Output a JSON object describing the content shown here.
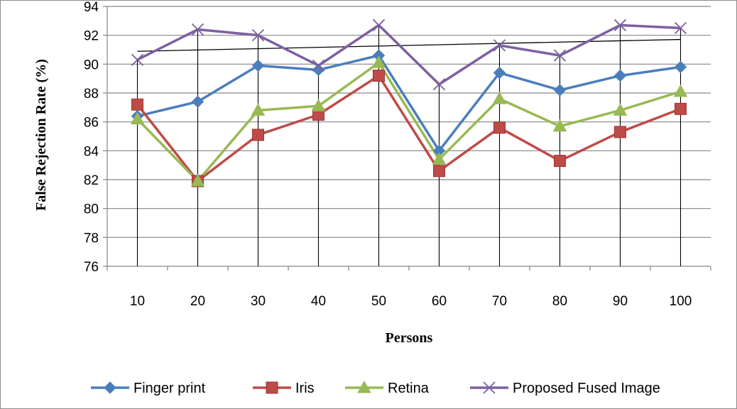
{
  "chart_data": {
    "type": "line",
    "title": "",
    "xlabel": "Persons",
    "ylabel": "False Rejection Rate (%)",
    "categories": [
      "10",
      "20",
      "30",
      "40",
      "50",
      "60",
      "70",
      "80",
      "90",
      "100"
    ],
    "ylim": [
      76,
      94
    ],
    "yticks": [
      "76",
      "78",
      "80",
      "82",
      "84",
      "86",
      "88",
      "90",
      "92",
      "94"
    ],
    "grid": "horizontal",
    "legend_position": "bottom",
    "series": [
      {
        "name": "Finger print",
        "color": "#4a7ebb",
        "marker": "diamond",
        "values": [
          86.4,
          87.4,
          89.9,
          89.6,
          90.6,
          84.0,
          89.4,
          88.2,
          89.2,
          89.8
        ]
      },
      {
        "name": "Iris",
        "color": "#be4b48",
        "marker": "square",
        "values": [
          87.2,
          81.9,
          85.1,
          86.5,
          89.2,
          82.6,
          85.6,
          83.3,
          85.3,
          86.9
        ]
      },
      {
        "name": "Retina",
        "color": "#98b954",
        "marker": "triangle",
        "values": [
          86.2,
          81.9,
          86.8,
          87.1,
          90.1,
          83.4,
          87.6,
          85.7,
          86.8,
          88.1
        ]
      },
      {
        "name": "Proposed Fused Image",
        "color": "#7d60a0",
        "marker": "x",
        "values": [
          90.3,
          92.4,
          92.0,
          89.9,
          92.7,
          88.6,
          91.3,
          90.6,
          92.7,
          92.5
        ]
      }
    ]
  }
}
